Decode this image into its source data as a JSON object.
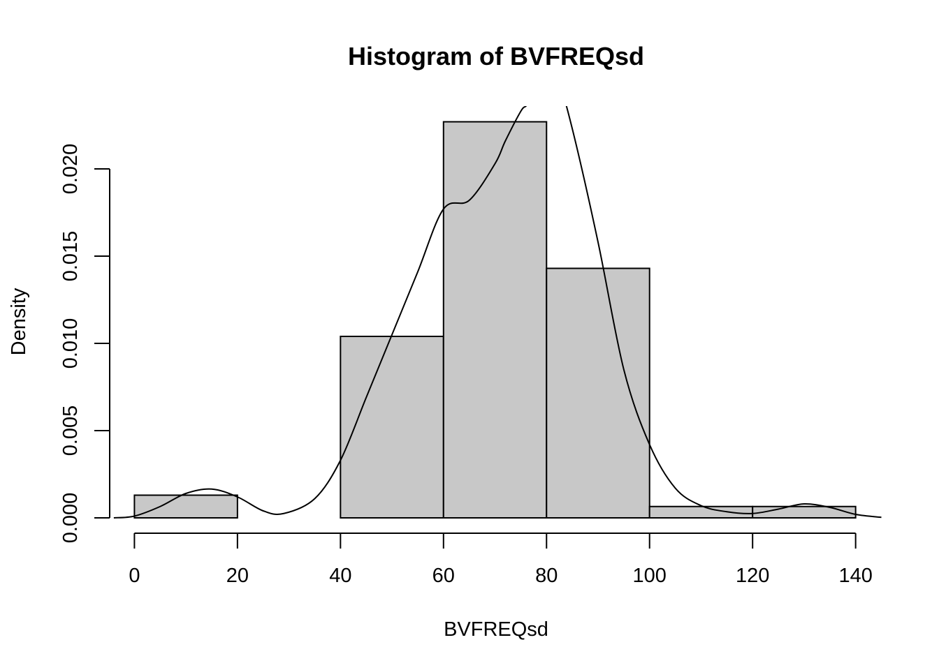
{
  "chart_data": {
    "type": "bar",
    "subtype": "histogram",
    "title": "Histogram of BVFREQsd",
    "xlabel": "BVFREQsd",
    "ylabel": "Density",
    "xlim": [
      -4.8,
      145.2
    ],
    "ylim": [
      0,
      0.0236
    ],
    "x_ticks": [
      0,
      20,
      40,
      60,
      80,
      100,
      120,
      140
    ],
    "y_ticks": [
      0.0,
      0.005,
      0.01,
      0.015,
      0.02
    ],
    "x_tick_labels": [
      "0",
      "20",
      "40",
      "60",
      "80",
      "100",
      "120",
      "140"
    ],
    "y_tick_labels": [
      "0.000",
      "0.005",
      "0.010",
      "0.015",
      "0.020"
    ],
    "bins": [
      {
        "start": 0,
        "end": 20,
        "density": 0.0013
      },
      {
        "start": 20,
        "end": 40,
        "density": 0.0
      },
      {
        "start": 40,
        "end": 60,
        "density": 0.0104
      },
      {
        "start": 60,
        "end": 80,
        "density": 0.0227
      },
      {
        "start": 80,
        "end": 100,
        "density": 0.0143
      },
      {
        "start": 100,
        "end": 120,
        "density": 0.00065
      },
      {
        "start": 120,
        "end": 140,
        "density": 0.00065
      }
    ],
    "density_curve": {
      "x": [
        -4,
        0,
        5,
        10,
        15,
        20,
        25,
        29,
        35,
        40,
        45,
        50,
        55,
        60,
        65,
        70,
        72,
        75,
        76,
        77,
        80,
        82,
        85,
        90,
        95,
        100,
        105,
        110,
        115,
        120,
        125,
        130,
        135,
        140,
        145
      ],
      "y": [
        0.0,
        0.0001,
        0.00065,
        0.0014,
        0.00165,
        0.0012,
        0.0004,
        0.00025,
        0.0011,
        0.0033,
        0.0069,
        0.0105,
        0.0141,
        0.0177,
        0.0182,
        0.0203,
        0.0216,
        0.0233,
        0.0236,
        0.0239,
        0.0256,
        0.0253,
        0.0223,
        0.0158,
        0.0085,
        0.0042,
        0.0017,
        0.0007,
        0.00035,
        0.00025,
        0.0005,
        0.0008,
        0.0006,
        0.0002,
        3e-05
      ]
    },
    "colors": {
      "bar_fill": "#c8c8c8",
      "stroke": "#000000"
    }
  }
}
